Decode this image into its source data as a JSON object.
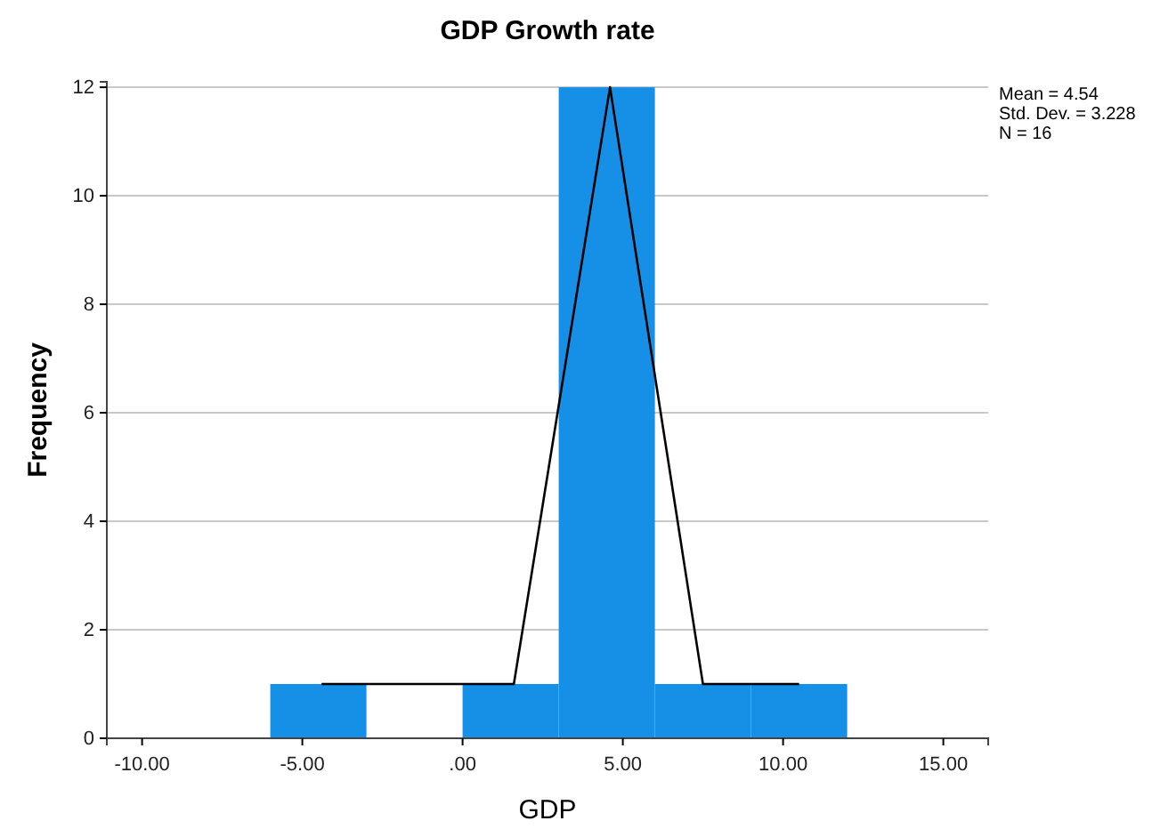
{
  "chart_data": {
    "type": "histogram",
    "title": "GDP Growth rate",
    "xlabel": "GDP",
    "ylabel": "Frequency",
    "bins": [
      -6,
      -3,
      0,
      3,
      6,
      9,
      12
    ],
    "values": [
      1,
      0,
      1,
      12,
      1,
      1
    ],
    "color": "#1590e6",
    "series": [
      {
        "type": "line",
        "color": "#000000",
        "x": [
          -4.4,
          1.6,
          4.6,
          7.5,
          10.5
        ],
        "values": [
          1,
          1,
          12,
          1,
          1
        ]
      }
    ],
    "xlim": [
      -11.1,
      16.4
    ],
    "ylim": [
      0,
      12.1
    ],
    "xticks": [
      {
        "value": -10,
        "label": "-10.00"
      },
      {
        "value": -5,
        "label": "-5.00"
      },
      {
        "value": 0,
        "label": ".00"
      },
      {
        "value": 5,
        "label": "5.00"
      },
      {
        "value": 10,
        "label": "10.00"
      },
      {
        "value": 15,
        "label": "15.00"
      }
    ],
    "yticks": [
      0,
      2,
      4,
      6,
      8,
      10,
      12
    ],
    "grid": "y",
    "annotations": [
      "Mean = 4.54",
      "Std. Dev. = 3.228",
      "N = 16"
    ]
  }
}
